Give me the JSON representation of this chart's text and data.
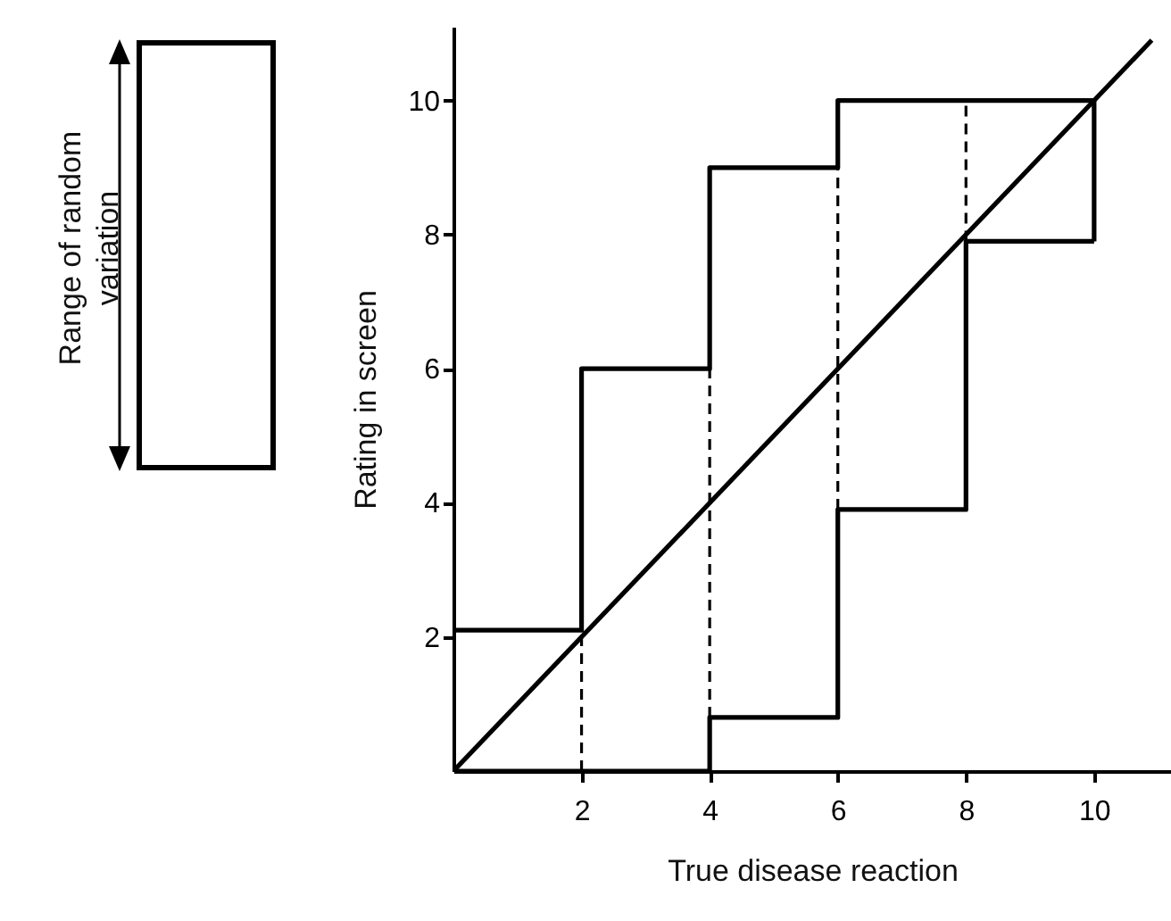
{
  "chart_data": {
    "type": "line",
    "xlabel": "True disease reaction",
    "ylabel": "Rating in screen",
    "annotations": [
      "Range of random variation"
    ],
    "xlim": [
      0,
      11.2
    ],
    "ylim": [
      0,
      11.1
    ],
    "xticks": [
      2,
      4,
      6,
      8,
      10
    ],
    "yticks": [
      2,
      4,
      6,
      8,
      10
    ],
    "marker": "none",
    "series": [
      {
        "color": "#000000",
        "line_style": "solid",
        "x": [
          0,
          0,
          2,
          2,
          4,
          4,
          6,
          6,
          10,
          10
        ],
        "values": [
          0,
          2.1,
          2.1,
          6,
          6,
          9,
          9,
          10,
          10,
          7.9
        ]
      },
      {
        "color": "#000000",
        "line_style": "solid",
        "x": [
          0,
          4,
          4,
          6,
          6,
          8,
          8,
          10
        ],
        "values": [
          0,
          0,
          0.8,
          0.8,
          3.9,
          3.9,
          7.9,
          7.9
        ]
      },
      {
        "color": "#000000",
        "line_style": "solid",
        "x": [
          0,
          10.9
        ],
        "values": [
          0,
          10.9
        ]
      },
      {
        "color": "#000000",
        "line_style": "dashed",
        "x": [
          2,
          2
        ],
        "values": [
          0,
          2.1
        ]
      },
      {
        "color": "#000000",
        "line_style": "dashed",
        "x": [
          4,
          4
        ],
        "values": [
          0,
          6
        ]
      },
      {
        "color": "#000000",
        "line_style": "dashed",
        "x": [
          6,
          6
        ],
        "values": [
          3.9,
          9
        ]
      },
      {
        "color": "#000000",
        "line_style": "dashed",
        "x": [
          8,
          8
        ],
        "values": [
          7.9,
          10
        ]
      }
    ]
  }
}
